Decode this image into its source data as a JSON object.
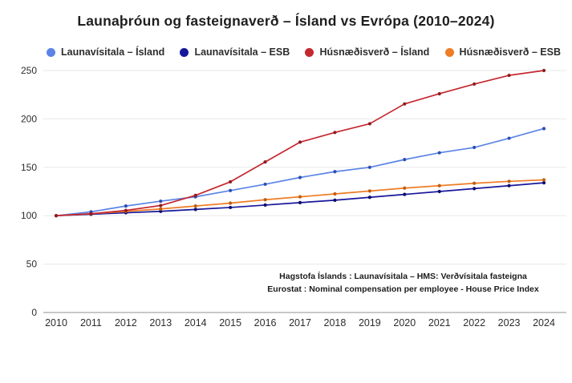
{
  "title": "Launaþróun og fasteignaverð – Ísland vs Evrópa (2010–2024)",
  "source_note": {
    "line1": "Hagstofa Íslands : Launavísitala – HMS:  Verðvísitala fasteigna",
    "line2": "Eurostat : Nominal compensation per employee - House Price Index"
  },
  "text_color": "#2d2d2d",
  "grid_color": "#ececec",
  "baseline_color": "#c8c8c8",
  "chart_data": {
    "type": "line",
    "title": "Launaþróun og fasteignaverð – Ísland vs Evrópa (2010–2024)",
    "xlabel": "",
    "ylabel": "",
    "x": [
      2010,
      2011,
      2012,
      2013,
      2014,
      2015,
      2016,
      2017,
      2018,
      2019,
      2020,
      2021,
      2022,
      2023,
      2024
    ],
    "ylim": [
      0,
      250
    ],
    "yticks": [
      0,
      50,
      100,
      150,
      200,
      250
    ],
    "grid": true,
    "legend_position": "top",
    "series": [
      {
        "name": "Launavísitala – Ísland",
        "color": "#5b84e6",
        "marker_color": "#2c4fb5",
        "values": [
          100,
          104,
          110,
          115,
          119.5,
          126,
          132.5,
          139.5,
          145.5,
          150,
          158,
          165,
          170.5,
          180,
          190
        ]
      },
      {
        "name": "Launavísitala – ESB",
        "color": "#17179c",
        "marker_color": "#0d0d6e",
        "values": [
          100,
          101.5,
          103,
          104.5,
          106.5,
          108.5,
          111,
          113.5,
          116,
          119,
          122,
          125,
          128,
          131,
          134
        ]
      },
      {
        "name": "Húsnæðisverð – Ísland",
        "color": "#c52830",
        "marker_color": "#8f1d22",
        "values": [
          100,
          102,
          105.5,
          110.5,
          121,
          135,
          155.5,
          176,
          186,
          195,
          215.5,
          226,
          236,
          245,
          250
        ]
      },
      {
        "name": "Húsnæðisverð – ESB",
        "color": "#ee7d25",
        "marker_color": "#c25e10",
        "values": [
          100,
          102,
          104.5,
          107,
          110,
          113,
          116.5,
          119.5,
          122.5,
          125.5,
          128.5,
          131,
          133.5,
          135.5,
          137
        ]
      }
    ]
  }
}
